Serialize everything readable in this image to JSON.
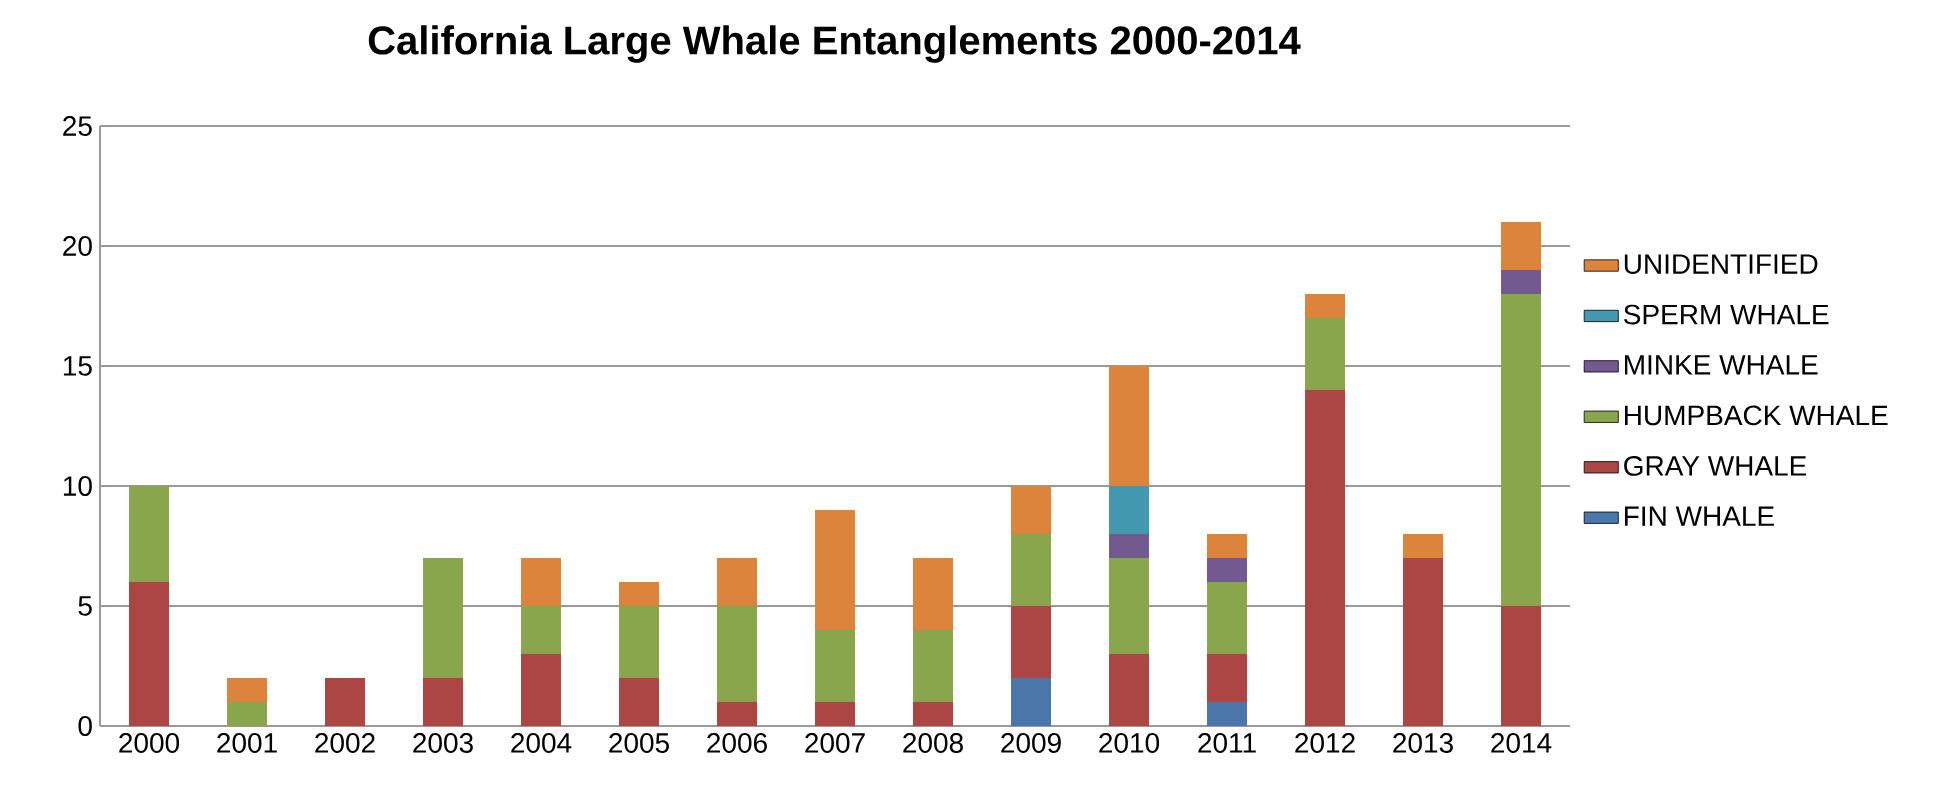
{
  "chart_data": {
    "type": "bar",
    "title": "California Large Whale Entanglements 2000-2014",
    "stacked": true,
    "categories": [
      "2000",
      "2001",
      "2002",
      "2003",
      "2004",
      "2005",
      "2006",
      "2007",
      "2008",
      "2009",
      "2010",
      "2011",
      "2012",
      "2013",
      "2014"
    ],
    "series": [
      {
        "name": "FIN WHALE",
        "color": "#4a76aa",
        "values": [
          0,
          0,
          0,
          0,
          0,
          0,
          0,
          0,
          0,
          2,
          0,
          1,
          0,
          0,
          0
        ]
      },
      {
        "name": "GRAY WHALE",
        "color": "#ab4645",
        "values": [
          6,
          0,
          2,
          2,
          3,
          2,
          1,
          1,
          1,
          3,
          3,
          2,
          14,
          7,
          5
        ]
      },
      {
        "name": "HUMPBACK WHALE",
        "color": "#8aa64d",
        "values": [
          4,
          1,
          0,
          5,
          2,
          3,
          4,
          3,
          3,
          3,
          4,
          3,
          3,
          0,
          13
        ]
      },
      {
        "name": "MINKE WHALE",
        "color": "#725990",
        "values": [
          0,
          0,
          0,
          0,
          0,
          0,
          0,
          0,
          0,
          0,
          1,
          1,
          0,
          0,
          1
        ]
      },
      {
        "name": "SPERM WHALE",
        "color": "#4299b0",
        "values": [
          0,
          0,
          0,
          0,
          0,
          0,
          0,
          0,
          0,
          0,
          2,
          0,
          0,
          0,
          0
        ]
      },
      {
        "name": "UNIDENTIFIED",
        "color": "#dc833c",
        "values": [
          0,
          1,
          0,
          0,
          2,
          1,
          2,
          5,
          3,
          2,
          5,
          1,
          1,
          1,
          2
        ]
      }
    ],
    "ylim": [
      0,
      25
    ],
    "yticks": [
      0,
      5,
      10,
      15,
      20,
      25
    ],
    "grid": "y",
    "legend": "right"
  }
}
